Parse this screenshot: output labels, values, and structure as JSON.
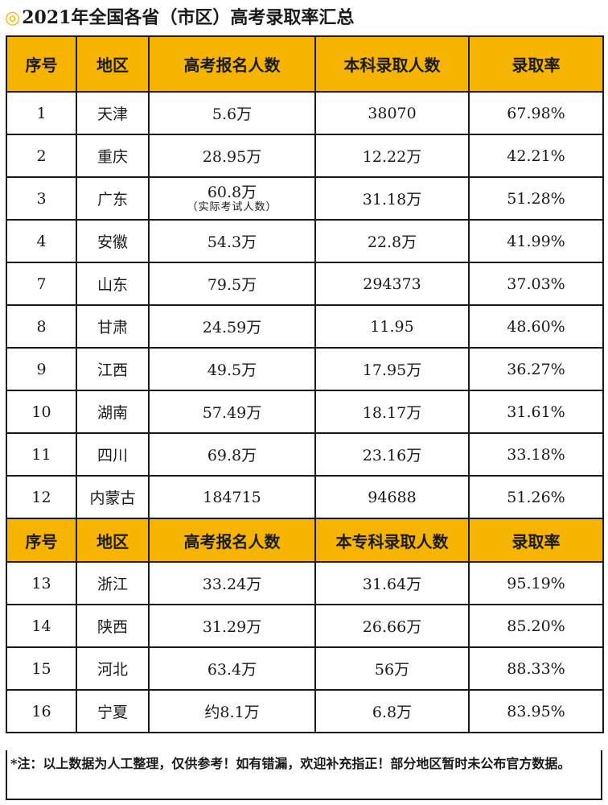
{
  "title": "2021年全国各省（市区）高考录取率汇总",
  "title_mark": "◎",
  "headers_1": [
    "序号",
    "地区",
    "高考报名人数",
    "本科录取人数",
    "录取率"
  ],
  "rows_1": [
    {
      "no": "1",
      "region": "天津",
      "applicants": "5.6万",
      "admitted": "38070",
      "rate": "67.98%"
    },
    {
      "no": "2",
      "region": "重庆",
      "applicants": "28.95万",
      "admitted": "12.22万",
      "rate": "42.21%"
    },
    {
      "no": "3",
      "region": "广东",
      "applicants": "60.8万",
      "applicants_note": "（实际考试人数）",
      "admitted": "31.18万",
      "rate": "51.28%"
    },
    {
      "no": "4",
      "region": "安徽",
      "applicants": "54.3万",
      "admitted": "22.8万",
      "rate": "41.99%"
    },
    {
      "no": "7",
      "region": "山东",
      "applicants": "79.5万",
      "admitted": "294373",
      "rate": "37.03%"
    },
    {
      "no": "8",
      "region": "甘肃",
      "applicants": "24.59万",
      "admitted": "11.95",
      "rate": "48.60%"
    },
    {
      "no": "9",
      "region": "江西",
      "applicants": "49.5万",
      "admitted": "17.95万",
      "rate": "36.27%"
    },
    {
      "no": "10",
      "region": "湖南",
      "applicants": "57.49万",
      "admitted": "18.17万",
      "rate": "31.61%"
    },
    {
      "no": "11",
      "region": "四川",
      "applicants": "69.8万",
      "admitted": "23.16万",
      "rate": "33.18%"
    },
    {
      "no": "12",
      "region": "内蒙古",
      "applicants": "184715",
      "admitted": "94688",
      "rate": "51.26%"
    }
  ],
  "headers_2": [
    "序号",
    "地区",
    "高考报名人数",
    "本专科录取人数",
    "录取率"
  ],
  "rows_2": [
    {
      "no": "13",
      "region": "浙江",
      "applicants": "33.24万",
      "admitted": "31.64万",
      "rate": "95.19%"
    },
    {
      "no": "14",
      "region": "陕西",
      "applicants": "31.29万",
      "admitted": "26.66万",
      "rate": "85.20%"
    },
    {
      "no": "15",
      "region": "河北",
      "applicants": "63.4万",
      "admitted": "56万",
      "rate": "88.33%"
    },
    {
      "no": "16",
      "region": "宁夏",
      "applicants": "约8.1万",
      "admitted": "6.8万",
      "rate": "83.95%"
    }
  ],
  "note": "*注：以上数据为人工整理，仅供参考！如有错漏，欢迎补充指正！部分地区暂时未公布官方数据。",
  "colors": {
    "header_bg": "#f5b400",
    "border": "#1a1a1a"
  }
}
